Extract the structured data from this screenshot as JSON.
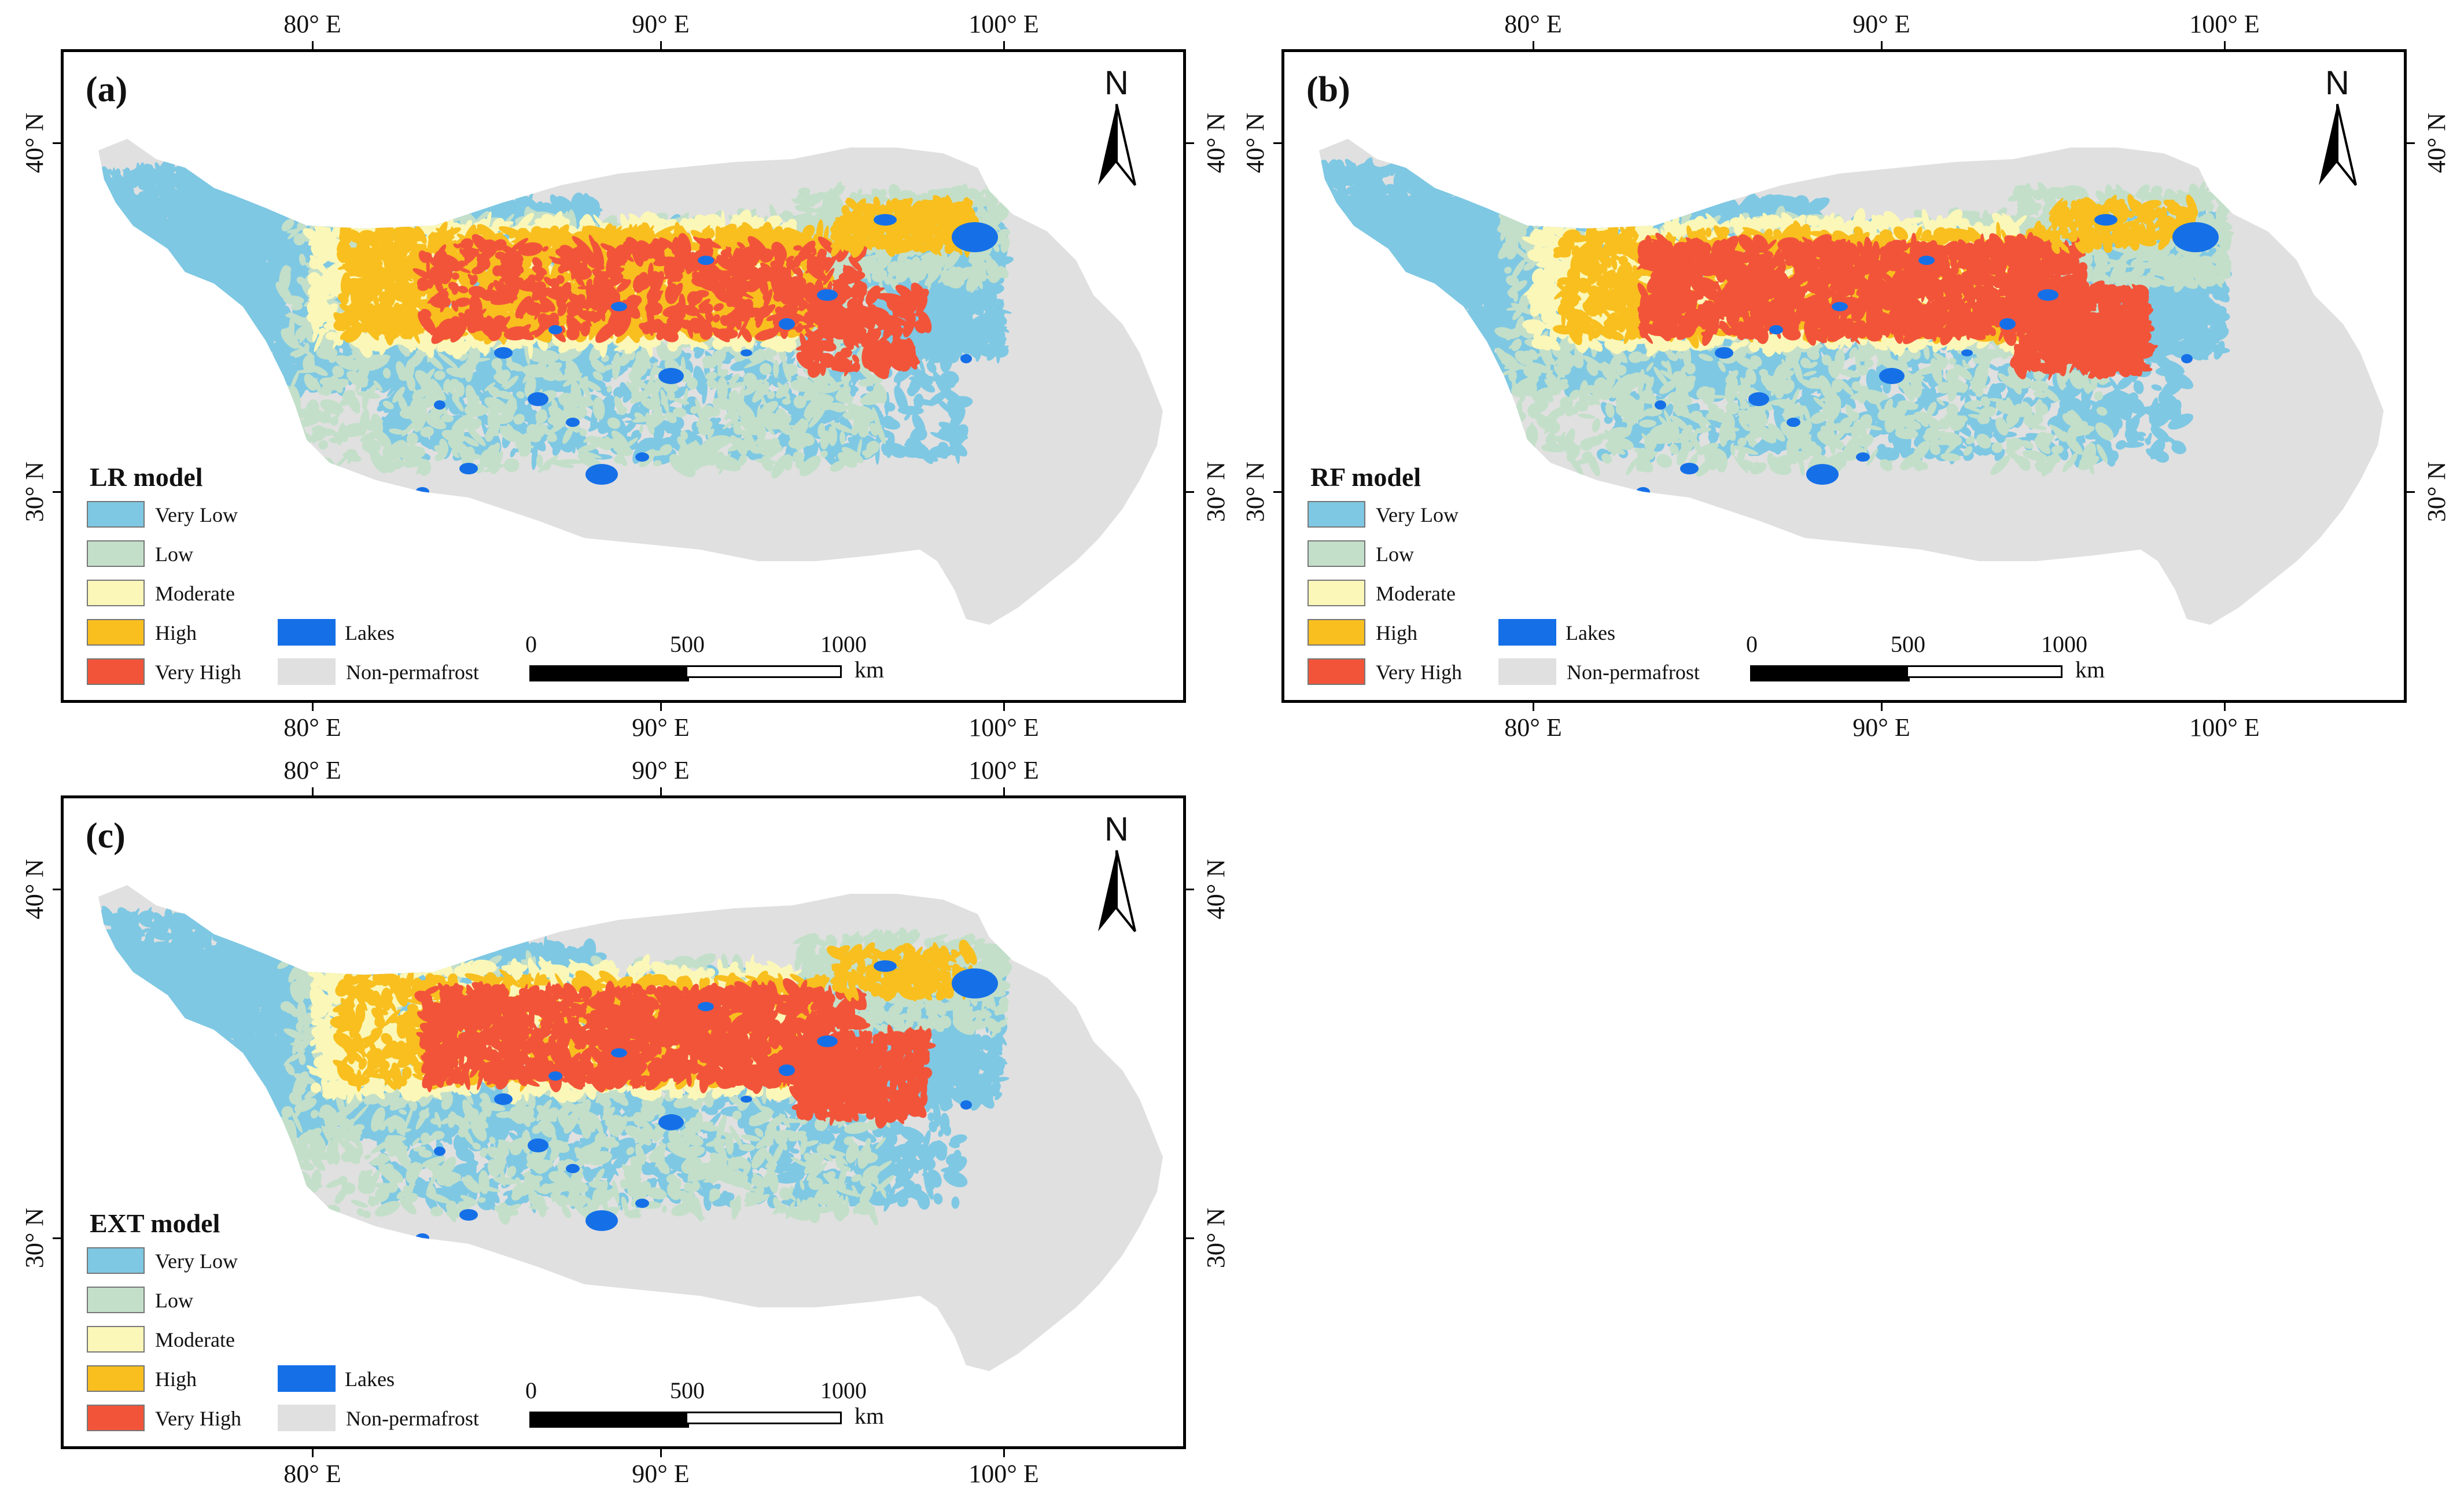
{
  "figure": {
    "panels": [
      {
        "id": "a",
        "label": "(a)",
        "model": "LR model"
      },
      {
        "id": "b",
        "label": "(b)",
        "model": "RF model"
      },
      {
        "id": "c",
        "label": "(c)",
        "model": "EXT model"
      }
    ],
    "axes": {
      "longitude_labels": [
        "80° E",
        "90° E",
        "100° E"
      ],
      "latitude_labels": [
        "40° N",
        "30° N"
      ]
    },
    "north_arrow": "N",
    "legend": {
      "classes": [
        {
          "label": "Very Low",
          "color": "#7ec8e3"
        },
        {
          "label": "Low",
          "color": "#c3dfc9"
        },
        {
          "label": "Moderate",
          "color": "#fbf7b8"
        },
        {
          "label": "High",
          "color": "#f8bf1f"
        },
        {
          "label": "Very High",
          "color": "#f2543a"
        }
      ],
      "other": [
        {
          "label": "Lakes",
          "color": "#1570e8"
        },
        {
          "label": "Non-permafrost",
          "color": "#e0e0e0"
        }
      ]
    },
    "scale_bar": {
      "ticks": [
        "0",
        "500",
        "1000"
      ],
      "unit": "km"
    }
  }
}
